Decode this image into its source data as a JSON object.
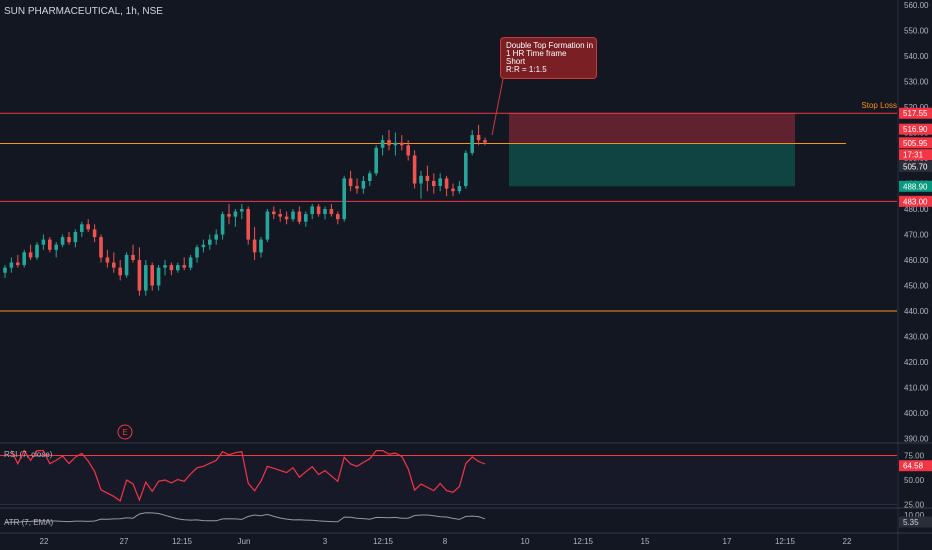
{
  "header": {
    "title": "SUN PHARMACEUTICAL, 1h, NSE"
  },
  "annotation": {
    "lines": [
      "Double Top Formation in",
      "1 HR Time frame",
      "Short",
      "R:R  =  1:1.5"
    ]
  },
  "stop_loss_label": "Stop Loss",
  "chart_data": {
    "type": "candlestick",
    "title": "SUN PHARMACEUTICAL, 1h, NSE",
    "y_axis": {
      "ticks": [
        390,
        400,
        410,
        420,
        430,
        440,
        450,
        460,
        470,
        480,
        490,
        500,
        510,
        520,
        530,
        540,
        550,
        560
      ]
    },
    "x_tick_labels": [
      "22",
      "27",
      "12:15",
      "Jun",
      "3",
      "12:15",
      "8",
      "10",
      "12:15",
      "15",
      "17",
      "12:15",
      "22"
    ],
    "price_labels": [
      {
        "text": "517.55",
        "color": "#f23645"
      },
      {
        "text": "516.90",
        "color": "#f23645"
      },
      {
        "text": "505.95",
        "color": "#f23645"
      },
      {
        "text": "17:31",
        "color": "#f23645"
      },
      {
        "text": "505.70",
        "color": "#2a2e39"
      },
      {
        "text": "488.90",
        "color": "#089981"
      },
      {
        "text": "483.00",
        "color": "#f23645"
      }
    ],
    "horizontal_lines": [
      {
        "value": 517.55,
        "color": "#f23645"
      },
      {
        "value": 505.7,
        "color": "#f7931a"
      },
      {
        "value": 483.0,
        "color": "#f23645"
      },
      {
        "value": 440.0,
        "color": "#f7931a"
      }
    ],
    "position": {
      "entry": 505.95,
      "stop": 517.55,
      "target": 488.9
    },
    "candles": [
      [
        455,
        458,
        453,
        457
      ],
      [
        457,
        461,
        455,
        459
      ],
      [
        459,
        462,
        457,
        458
      ],
      [
        458,
        464,
        457,
        463
      ],
      [
        463,
        466,
        460,
        461
      ],
      [
        461,
        467,
        460,
        466
      ],
      [
        466,
        470,
        464,
        468
      ],
      [
        468,
        469,
        463,
        464
      ],
      [
        464,
        467,
        461,
        466
      ],
      [
        466,
        470,
        465,
        469
      ],
      [
        469,
        471,
        466,
        467
      ],
      [
        467,
        472,
        465,
        471
      ],
      [
        471,
        475,
        469,
        474
      ],
      [
        474,
        476,
        471,
        472
      ],
      [
        472,
        474,
        467,
        469
      ],
      [
        469,
        470,
        459,
        461
      ],
      [
        461,
        464,
        457,
        459
      ],
      [
        459,
        463,
        455,
        457
      ],
      [
        457,
        460,
        452,
        454
      ],
      [
        454,
        463,
        453,
        462
      ],
      [
        462,
        466,
        459,
        460
      ],
      [
        460,
        465,
        446,
        448
      ],
      [
        448,
        460,
        446,
        458
      ],
      [
        458,
        459,
        448,
        450
      ],
      [
        450,
        458,
        448,
        457
      ],
      [
        457,
        460,
        454,
        458
      ],
      [
        458,
        459,
        454,
        456
      ],
      [
        456,
        459,
        455,
        458
      ],
      [
        458,
        461,
        456,
        457
      ],
      [
        457,
        462,
        456,
        461
      ],
      [
        461,
        466,
        459,
        465
      ],
      [
        465,
        468,
        463,
        466
      ],
      [
        466,
        470,
        464,
        468
      ],
      [
        468,
        472,
        466,
        470
      ],
      [
        470,
        479,
        468,
        478
      ],
      [
        478,
        482,
        474,
        477
      ],
      [
        477,
        480,
        473,
        479
      ],
      [
        479,
        482,
        476,
        480
      ],
      [
        480,
        481,
        466,
        468
      ],
      [
        468,
        473,
        460,
        463
      ],
      [
        463,
        469,
        461,
        468
      ],
      [
        468,
        480,
        467,
        479
      ],
      [
        479,
        481,
        476,
        478
      ],
      [
        478,
        480,
        475,
        477
      ],
      [
        477,
        479,
        474,
        476
      ],
      [
        476,
        480,
        475,
        479
      ],
      [
        479,
        481,
        474,
        475
      ],
      [
        475,
        479,
        473,
        478
      ],
      [
        478,
        482,
        476,
        481
      ],
      [
        481,
        482,
        477,
        478
      ],
      [
        478,
        481,
        476,
        480
      ],
      [
        480,
        482,
        477,
        478
      ],
      [
        478,
        479,
        474,
        476
      ],
      [
        476,
        493,
        475,
        492
      ],
      [
        492,
        495,
        487,
        489
      ],
      [
        489,
        492,
        486,
        488
      ],
      [
        488,
        493,
        486,
        491
      ],
      [
        491,
        495,
        489,
        494
      ],
      [
        494,
        505,
        493,
        504
      ],
      [
        504,
        509,
        501,
        507
      ],
      [
        507,
        511,
        503,
        505
      ],
      [
        505,
        510,
        501,
        506
      ],
      [
        506,
        509,
        503,
        505
      ],
      [
        505,
        507,
        499,
        501
      ],
      [
        501,
        503,
        488,
        490
      ],
      [
        490,
        495,
        484,
        493
      ],
      [
        493,
        497,
        487,
        491
      ],
      [
        491,
        494,
        486,
        489
      ],
      [
        489,
        494,
        487,
        492
      ],
      [
        492,
        493,
        485,
        488
      ],
      [
        488,
        490,
        485,
        487
      ],
      [
        487,
        491,
        486,
        489
      ],
      [
        489,
        503,
        488,
        502
      ],
      [
        502,
        511,
        501,
        509
      ],
      [
        509,
        513,
        505,
        507
      ],
      [
        507,
        508,
        505,
        506
      ]
    ],
    "rsi": {
      "label": "RSI (7, close)",
      "value_label": "64.58",
      "ticks": [
        "75.00",
        "50.00",
        "25.00"
      ]
    },
    "atr": {
      "label": "ATR (7, EMA)",
      "value_label": "5.35",
      "ticks": [
        "10.00"
      ]
    },
    "event_marker": "E"
  }
}
